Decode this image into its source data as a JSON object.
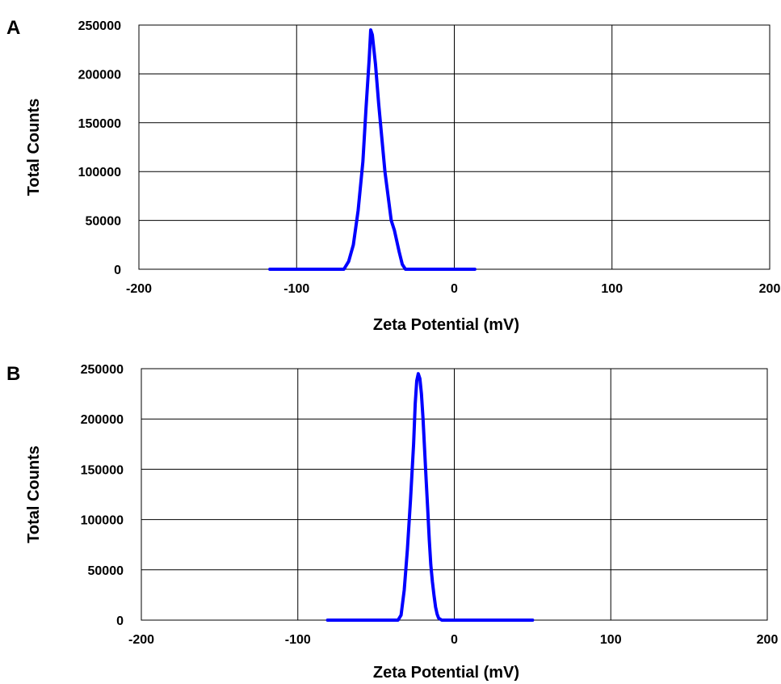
{
  "chart_data": [
    {
      "panel_label": "A",
      "type": "line",
      "xlabel": "Zeta Potential (mV)",
      "ylabel": "Total Counts",
      "xlim": [
        -200,
        200
      ],
      "ylim": [
        0,
        250000
      ],
      "x_ticks": [
        "-200",
        "-100",
        "0",
        "100",
        "200"
      ],
      "y_ticks": [
        "0",
        "50000",
        "100000",
        "150000",
        "200000",
        "250000"
      ],
      "grid": true,
      "series": [
        {
          "color": "#0000ff",
          "x": [
            -117,
            -70,
            -67,
            -64,
            -61,
            -58,
            -56,
            -54,
            -53,
            -52,
            -50,
            -48,
            -46,
            -44,
            -42,
            -40,
            -38,
            -35,
            -33,
            -31,
            -29,
            13
          ],
          "y": [
            0,
            0,
            8000,
            25000,
            60000,
            110000,
            165000,
            215000,
            245000,
            240000,
            210000,
            170000,
            135000,
            100000,
            75000,
            50000,
            40000,
            18000,
            5000,
            0,
            0,
            0
          ]
        }
      ]
    },
    {
      "panel_label": "B",
      "type": "line",
      "xlabel": "Zeta Potential (mV)",
      "ylabel": "Total Counts",
      "xlim": [
        -200,
        200
      ],
      "ylim": [
        0,
        250000
      ],
      "x_ticks": [
        "-200",
        "-100",
        "0",
        "100",
        "200"
      ],
      "y_ticks": [
        "0",
        "50000",
        "100000",
        "150000",
        "200000",
        "250000"
      ],
      "grid": true,
      "series": [
        {
          "color": "#0000ff",
          "x": [
            -81,
            -36,
            -34,
            -32,
            -30,
            -28,
            -26,
            -25,
            -24,
            -23,
            -22,
            -21,
            -20,
            -19,
            -18,
            -17,
            -16,
            -15,
            -14,
            -13,
            -12,
            -11,
            -10,
            -8,
            50
          ],
          "y": [
            0,
            0,
            5000,
            30000,
            70000,
            120000,
            175000,
            215000,
            238000,
            245000,
            240000,
            225000,
            200000,
            170000,
            140000,
            110000,
            80000,
            55000,
            38000,
            25000,
            13000,
            6000,
            2000,
            0,
            0
          ]
        }
      ]
    }
  ]
}
